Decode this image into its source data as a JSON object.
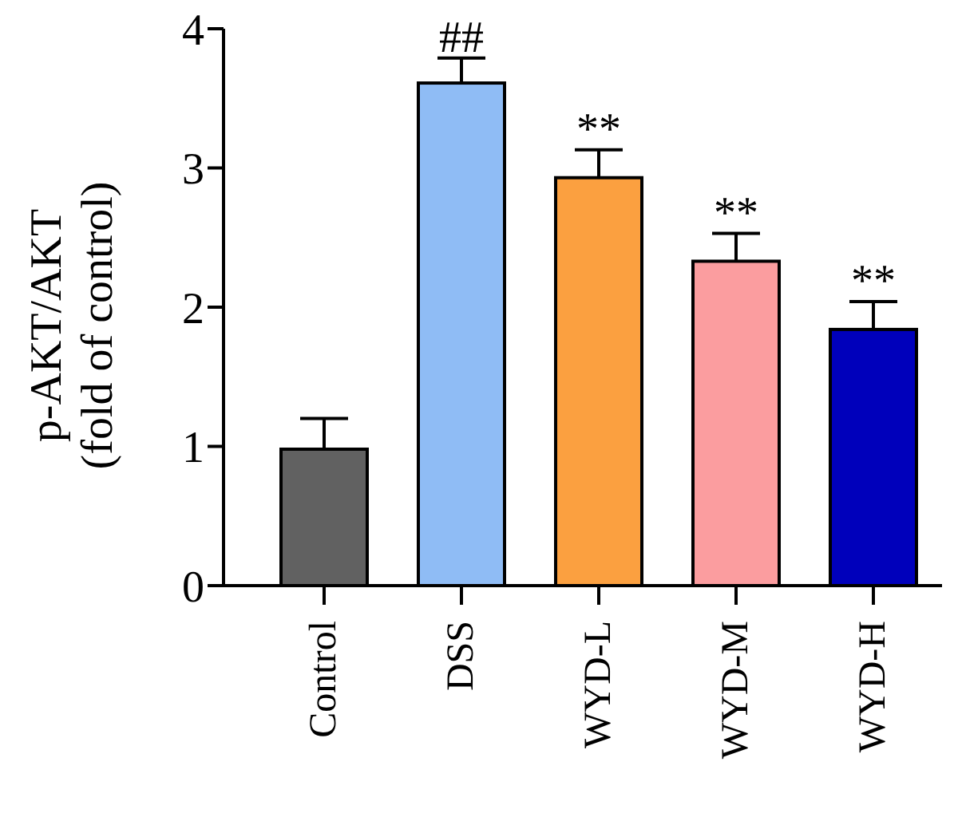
{
  "chart_data": {
    "type": "bar",
    "ylabel": "p-AKT/AKT\n(fold of control)",
    "categories": [
      "Control",
      "DSS",
      "WYD-L",
      "WYD-M",
      "WYD-H"
    ],
    "values": [
      0.98,
      3.61,
      2.93,
      2.33,
      1.84
    ],
    "colors": [
      "#616161",
      "#8fbcf5",
      "#fba040",
      "#fb9d9f",
      "#0000bb"
    ],
    "errors": [
      [
        0.98,
        1.2
      ],
      [
        3.61,
        3.79
      ],
      [
        2.93,
        3.13
      ],
      [
        2.33,
        2.53
      ],
      [
        1.84,
        2.04
      ]
    ],
    "annotations": [
      {
        "text": "##",
        "x": "DSS",
        "y": 3.79
      },
      {
        "text": "**",
        "x": "WYD-L",
        "y": 3.13
      },
      {
        "text": "**",
        "x": "WYD-M",
        "y": 2.53
      },
      {
        "text": "**",
        "x": "WYD-H",
        "y": 2.04
      }
    ],
    "ylim": [
      0,
      4
    ],
    "yticks": [
      0,
      1,
      2,
      3,
      4
    ],
    "grid": false,
    "legend": false
  }
}
